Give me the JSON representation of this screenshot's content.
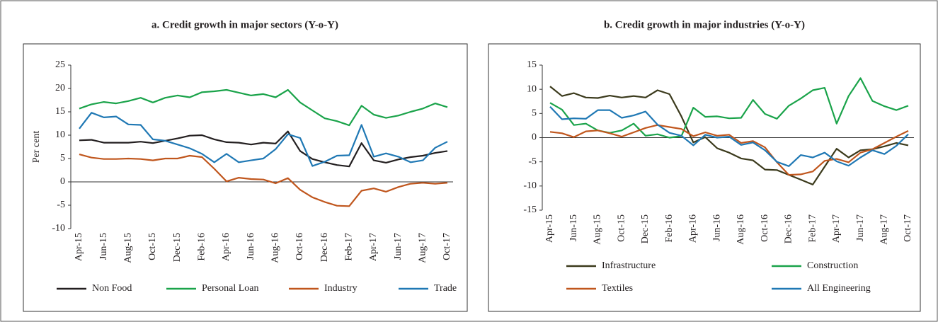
{
  "chart_data": [
    {
      "type": "line",
      "title": "a. Credit growth in major sectors (Y-o-Y)",
      "y_label": "Per cent",
      "categories": [
        "Apr-15",
        null,
        "Jun-15",
        null,
        "Aug-15",
        null,
        "Oct-15",
        null,
        "Dec-15",
        null,
        "Feb-16",
        null,
        "Apr-16",
        null,
        "Jun-16",
        null,
        "Aug-16",
        null,
        "Oct-16",
        null,
        "Dec-16",
        null,
        "Feb-17",
        null,
        "Apr-17",
        null,
        "Jun-17",
        null,
        "Aug-17",
        null,
        "Oct-17"
      ],
      "ylim": [
        -10,
        25
      ],
      "yticks": [
        25,
        20,
        15,
        10,
        5,
        0,
        -5,
        -10
      ],
      "legend": "bottom",
      "series": [
        {
          "name": "Non Food",
          "color": "#231f20",
          "values": [
            8.9,
            9.0,
            8.4,
            8.4,
            8.4,
            8.6,
            8.3,
            8.8,
            9.3,
            9.9,
            10.0,
            9.1,
            8.5,
            8.4,
            8.0,
            8.4,
            8.2,
            10.8,
            6.6,
            4.9,
            4.2,
            3.6,
            3.3,
            8.3,
            4.6,
            4.1,
            4.8,
            5.3,
            5.6,
            6.2,
            6.6
          ]
        },
        {
          "name": "Personal Loan",
          "color": "#1aa34a",
          "values": [
            15.7,
            16.6,
            17.1,
            16.8,
            17.3,
            18.0,
            17.0,
            18.0,
            18.5,
            18.1,
            19.2,
            19.4,
            19.7,
            19.1,
            18.5,
            18.8,
            18.1,
            19.7,
            17.0,
            15.3,
            13.6,
            13.0,
            12.1,
            16.3,
            14.4,
            13.7,
            14.2,
            15.0,
            15.7,
            16.8,
            16.0
          ]
        },
        {
          "name": "Industry",
          "color": "#c0561d",
          "values": [
            5.9,
            5.2,
            4.9,
            4.9,
            5.0,
            4.9,
            4.6,
            5.0,
            5.0,
            5.6,
            5.3,
            2.8,
            0.1,
            0.9,
            0.6,
            0.5,
            -0.3,
            0.8,
            -1.7,
            -3.3,
            -4.3,
            -5.1,
            -5.2,
            -1.9,
            -1.4,
            -2.1,
            -1.1,
            -0.4,
            -0.2,
            -0.4,
            -0.2
          ]
        },
        {
          "name": "Trade",
          "color": "#1f78b4",
          "values": [
            11.4,
            14.8,
            13.8,
            14.0,
            12.3,
            12.2,
            9.1,
            8.8,
            8.0,
            7.2,
            6.0,
            4.2,
            6.0,
            4.2,
            4.6,
            5.0,
            7.0,
            10.2,
            9.4,
            3.4,
            4.3,
            5.6,
            5.7,
            12.2,
            5.4,
            6.1,
            5.4,
            4.2,
            4.6,
            7.3,
            8.6
          ]
        }
      ]
    },
    {
      "type": "line",
      "title": "b. Credit growth in major industries (Y-o-Y)",
      "categories": [
        "Apr-15",
        null,
        "Jun-15",
        null,
        "Aug-15",
        null,
        "Oct-15",
        null,
        "Dec-15",
        null,
        "Feb-16",
        null,
        "Apr-16",
        null,
        "Jun-16",
        null,
        "Aug-16",
        null,
        "Oct-16",
        null,
        "Dec-16",
        null,
        "Feb-17",
        null,
        "Apr-17",
        null,
        "Jun-17",
        null,
        "Aug-17",
        null,
        "Oct-17"
      ],
      "ylim": [
        -15,
        15
      ],
      "yticks": [
        15,
        10,
        5,
        0,
        -5,
        -10,
        -15
      ],
      "legend": "bottom",
      "series": [
        {
          "name": "Infrastructure",
          "color": "#3b3a1c",
          "values": [
            10.6,
            8.6,
            9.2,
            8.3,
            8.2,
            8.7,
            8.3,
            8.6,
            8.3,
            9.8,
            9.0,
            4.4,
            -1.0,
            0.1,
            -2.2,
            -3.1,
            -4.3,
            -4.7,
            -6.6,
            -6.7,
            -7.7,
            -8.7,
            -9.7,
            -6.0,
            -2.3,
            -4.1,
            -2.6,
            -2.4,
            -1.8,
            -1.1,
            -1.6
          ]
        },
        {
          "name": "Construction",
          "color": "#1aa34a",
          "values": [
            7.2,
            5.8,
            2.6,
            2.9,
            1.5,
            1.0,
            1.5,
            2.9,
            0.4,
            0.7,
            0.0,
            0.3,
            6.2,
            4.3,
            4.4,
            4.0,
            4.1,
            7.8,
            4.9,
            3.9,
            6.6,
            8.1,
            9.8,
            10.3,
            2.9,
            8.6,
            12.3,
            7.6,
            6.5,
            5.7,
            6.6
          ]
        },
        {
          "name": "Textiles",
          "color": "#c0561d",
          "values": [
            1.2,
            0.9,
            0.1,
            1.3,
            1.5,
            0.9,
            0.2,
            1.1,
            2.0,
            2.6,
            2.2,
            1.8,
            0.3,
            1.1,
            0.4,
            0.6,
            -1.1,
            -0.7,
            -2.0,
            -5.1,
            -7.7,
            -7.6,
            -7.0,
            -4.8,
            -4.4,
            -5.1,
            -3.1,
            -2.4,
            -1.1,
            0.2,
            1.4
          ]
        },
        {
          "name": "All Engineering",
          "color": "#1f78b4",
          "values": [
            6.4,
            3.8,
            4.0,
            3.9,
            5.7,
            5.7,
            4.1,
            4.6,
            5.4,
            2.7,
            1.0,
            0.4,
            -1.6,
            0.6,
            0.0,
            0.2,
            -1.5,
            -1.0,
            -2.6,
            -5.0,
            -5.9,
            -3.6,
            -4.1,
            -3.1,
            -4.9,
            -5.8,
            -4.1,
            -2.6,
            -3.4,
            -1.7,
            0.7
          ]
        }
      ]
    }
  ]
}
